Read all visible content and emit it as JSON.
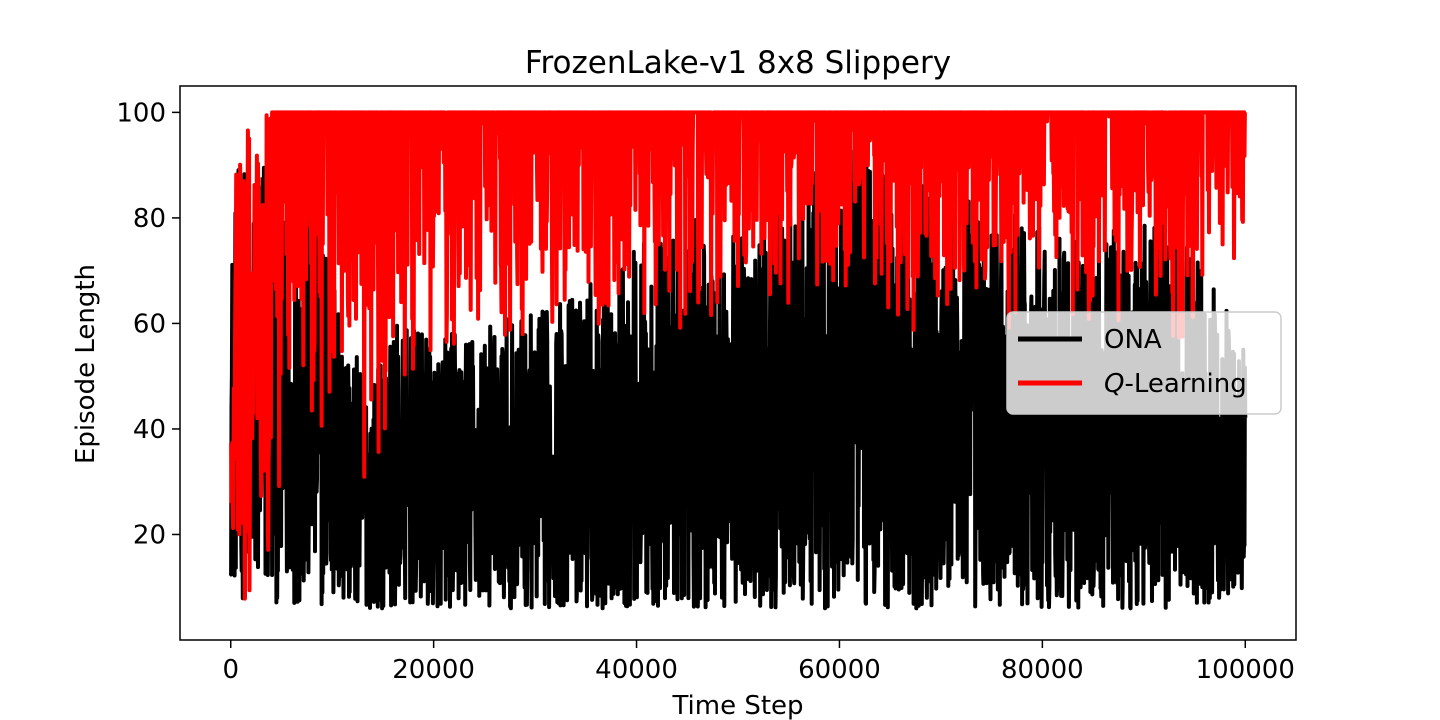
{
  "chart_data": {
    "type": "line",
    "title": "FrozenLake-v1 8x8 Slippery",
    "xlabel": "Time Step",
    "ylabel": "Episode Length",
    "xlim": [
      -5000,
      105000
    ],
    "ylim": [
      0,
      105
    ],
    "xticks": [
      0,
      20000,
      40000,
      60000,
      80000,
      100000
    ],
    "yticks": [
      20,
      40,
      60,
      80,
      100
    ],
    "grid": false,
    "legend_position": "center-right",
    "series": [
      {
        "name": "ONA",
        "color": "#000000",
        "envelope": {
          "x": [
            0,
            1000,
            2000,
            3000,
            4000,
            5000,
            6000,
            8000,
            10000,
            12000,
            14000,
            16000,
            20000,
            25000,
            30000,
            35000,
            40000,
            45000,
            50000,
            55000,
            58000,
            61000,
            63000,
            66000,
            70000,
            75000,
            80000,
            85000,
            90000,
            95000,
            100000
          ],
          "low": [
            12,
            8,
            6,
            6,
            7,
            7,
            7,
            7,
            6,
            6,
            6,
            6,
            6,
            6,
            6,
            6,
            6,
            6,
            6,
            6,
            6,
            6,
            6,
            6,
            6,
            6,
            6,
            6,
            6,
            6,
            10
          ],
          "high": [
            75,
            94,
            88,
            100,
            92,
            82,
            76,
            100,
            72,
            55,
            50,
            60,
            58,
            60,
            62,
            68,
            75,
            80,
            78,
            82,
            90,
            100,
            97,
            90,
            88,
            82,
            80,
            75,
            82,
            77,
            55
          ]
        }
      },
      {
        "name": "Q-Learning",
        "color": "#ff0000",
        "envelope": {
          "x": [
            0,
            500,
            1000,
            1500,
            2000,
            3000,
            4000,
            5000,
            6000,
            8000,
            10000,
            12000,
            14000,
            16000,
            20000,
            25000,
            30000,
            35000,
            40000,
            45000,
            50000,
            55000,
            60000,
            65000,
            70000,
            75000,
            80000,
            85000,
            90000,
            95000,
            100000
          ],
          "low": [
            15,
            10,
            8,
            6,
            6,
            15,
            14,
            20,
            35,
            40,
            38,
            45,
            12,
            44,
            50,
            55,
            57,
            55,
            58,
            58,
            60,
            62,
            62,
            54,
            60,
            55,
            60,
            58,
            58,
            55,
            70
          ],
          "high": [
            50,
            90,
            95,
            100,
            100,
            100,
            100,
            100,
            100,
            100,
            100,
            100,
            100,
            100,
            100,
            100,
            100,
            100,
            100,
            100,
            100,
            100,
            100,
            100,
            100,
            100,
            100,
            100,
            100,
            100,
            100
          ]
        }
      }
    ]
  },
  "legend": {
    "items": [
      {
        "label": "ONA",
        "color": "#000000"
      },
      {
        "label_italic": "Q",
        "label_rest": "-Learning",
        "color": "#ff0000"
      }
    ]
  }
}
